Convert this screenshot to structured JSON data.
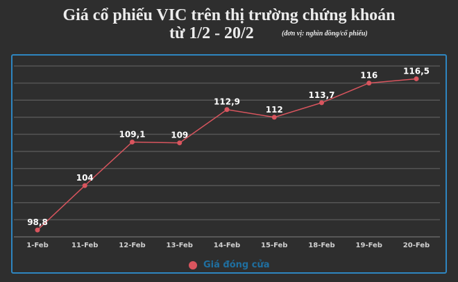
{
  "header": {
    "title": "Giá cổ phiếu VIC trên thị trường chứng khoán",
    "subtitle": "từ 1/2 - 20/2",
    "unit_note": "(đơn vị:  nghìn đồng/cổ phiếu)"
  },
  "legend": {
    "label": "Giá đóng cửa",
    "color": "#d9555e"
  },
  "colors": {
    "background": "#2e2e2e",
    "frame": "#2e86c1",
    "line": "#d9555e",
    "grid": "#555555",
    "legend_text": "#1f6fa0"
  },
  "chart_data": {
    "type": "line",
    "title": "Giá cổ phiếu VIC trên thị trường chứng khoán từ 1/2 - 20/2",
    "subtitle": "(đơn vị: nghìn đồng/cổ phiếu)",
    "xlabel": "",
    "ylabel": "",
    "categories": [
      "1-Feb",
      "11-Feb",
      "12-Feb",
      "13-Feb",
      "14-Feb",
      "15-Feb",
      "18-Feb",
      "19-Feb",
      "20-Feb"
    ],
    "series": [
      {
        "name": "Giá đóng cửa",
        "values": [
          98.8,
          104,
          109.1,
          109,
          112.9,
          112,
          113.7,
          116,
          116.5
        ],
        "labels": [
          "98,8",
          "104",
          "109,1",
          "109",
          "112,9",
          "112",
          "113,7",
          "116",
          "116,5"
        ]
      }
    ],
    "ylim": [
      98,
      118
    ],
    "ystep": 2,
    "y_axis_visible": false,
    "grid": true,
    "data_labels": true,
    "legend_position": "bottom"
  }
}
